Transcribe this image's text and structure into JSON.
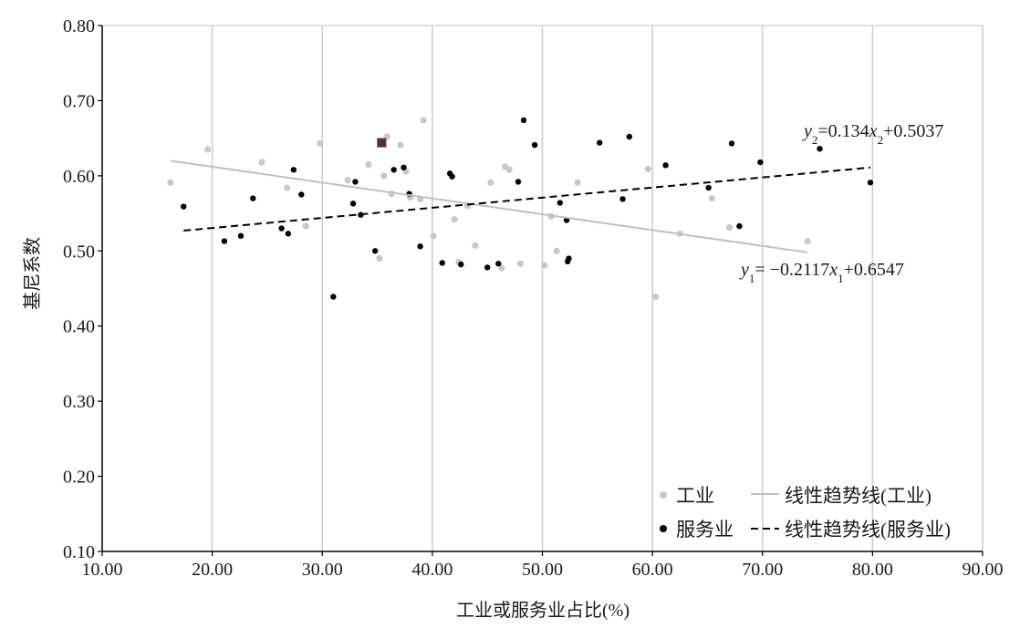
{
  "chart_data": {
    "type": "scatter",
    "xlabel": "工业或服务业占比(%)",
    "ylabel": "基尼系数",
    "xlim": [
      10,
      90
    ],
    "ylim": [
      0.1,
      0.8
    ],
    "x_ticks": [
      "10.00",
      "20.00",
      "30.00",
      "40.00",
      "50.00",
      "60.00",
      "70.00",
      "80.00",
      "90.00"
    ],
    "y_ticks": [
      "0.10",
      "0.20",
      "0.30",
      "0.40",
      "0.50",
      "0.60",
      "0.70",
      "0.80"
    ],
    "grid": "vertical",
    "legend_position": "bottom-right",
    "series": [
      {
        "name": "工业",
        "color": "#c8c8c8",
        "marker": "circle",
        "points": [
          [
            16.2,
            0.591
          ],
          [
            19.6,
            0.635
          ],
          [
            24.5,
            0.618
          ],
          [
            26.8,
            0.584
          ],
          [
            28.5,
            0.533
          ],
          [
            29.8,
            0.643
          ],
          [
            32.3,
            0.594
          ],
          [
            34.2,
            0.615
          ],
          [
            35.2,
            0.49
          ],
          [
            35.6,
            0.6
          ],
          [
            35.9,
            0.652
          ],
          [
            36.3,
            0.576
          ],
          [
            37.1,
            0.641
          ],
          [
            37.6,
            0.606
          ],
          [
            38.0,
            0.571
          ],
          [
            38.9,
            0.569
          ],
          [
            39.2,
            0.674
          ],
          [
            40.1,
            0.52
          ],
          [
            42.0,
            0.542
          ],
          [
            42.4,
            0.485
          ],
          [
            43.2,
            0.56
          ],
          [
            43.9,
            0.507
          ],
          [
            45.3,
            0.591
          ],
          [
            46.3,
            0.477
          ],
          [
            46.6,
            0.612
          ],
          [
            47.0,
            0.608
          ],
          [
            48.0,
            0.483
          ],
          [
            50.2,
            0.481
          ],
          [
            50.8,
            0.546
          ],
          [
            51.3,
            0.5
          ],
          [
            53.2,
            0.591
          ],
          [
            59.6,
            0.609
          ],
          [
            60.3,
            0.439
          ],
          [
            62.5,
            0.523
          ],
          [
            65.4,
            0.57
          ],
          [
            67.0,
            0.531
          ],
          [
            74.1,
            0.513
          ]
        ]
      },
      {
        "name": "服务业",
        "color": "#000000",
        "marker": "circle",
        "points": [
          [
            17.4,
            0.559
          ],
          [
            21.1,
            0.513
          ],
          [
            22.6,
            0.52
          ],
          [
            23.7,
            0.57
          ],
          [
            26.3,
            0.53
          ],
          [
            26.9,
            0.523
          ],
          [
            27.4,
            0.608
          ],
          [
            28.1,
            0.575
          ],
          [
            31.0,
            0.439
          ],
          [
            32.8,
            0.563
          ],
          [
            33.0,
            0.592
          ],
          [
            33.5,
            0.548
          ],
          [
            34.8,
            0.5
          ],
          [
            36.5,
            0.608
          ],
          [
            37.4,
            0.611
          ],
          [
            37.9,
            0.576
          ],
          [
            38.9,
            0.506
          ],
          [
            40.9,
            0.484
          ],
          [
            41.6,
            0.603
          ],
          [
            41.8,
            0.599
          ],
          [
            42.6,
            0.482
          ],
          [
            45.0,
            0.478
          ],
          [
            46.0,
            0.483
          ],
          [
            47.8,
            0.592
          ],
          [
            48.3,
            0.674
          ],
          [
            49.3,
            0.641
          ],
          [
            51.6,
            0.564
          ],
          [
            52.2,
            0.541
          ],
          [
            52.3,
            0.486
          ],
          [
            52.4,
            0.49
          ],
          [
            55.2,
            0.644
          ],
          [
            57.3,
            0.569
          ],
          [
            57.9,
            0.652
          ],
          [
            61.2,
            0.614
          ],
          [
            65.1,
            0.584
          ],
          [
            67.2,
            0.643
          ],
          [
            67.9,
            0.533
          ],
          [
            69.8,
            0.618
          ],
          [
            75.2,
            0.636
          ],
          [
            79.8,
            0.591
          ]
        ]
      }
    ],
    "highlight_point": {
      "x": 35.4,
      "y": 0.644,
      "marker": "square"
    },
    "trendlines": [
      {
        "name": "线性趋势线(工业)",
        "style": "solid",
        "color": "#c0c0c0",
        "x_range": [
          16.2,
          74.1
        ],
        "y_start": 0.62,
        "y_end": 0.498,
        "label_prefix": "y",
        "label_sub": "1",
        "label_mid": "= −0.2117",
        "label_var": "x",
        "label_var_sub": "1",
        "label_suffix": "+0.6547"
      },
      {
        "name": "线性趋势线(服务业)",
        "style": "dashed",
        "color": "#000000",
        "x_range": [
          17.4,
          79.8
        ],
        "y_start": 0.527,
        "y_end": 0.611,
        "label_prefix": "y",
        "label_sub": "2",
        "label_mid": "=0.134",
        "label_var": "x",
        "label_var_sub": "2",
        "label_suffix": "+0.5037"
      }
    ]
  }
}
